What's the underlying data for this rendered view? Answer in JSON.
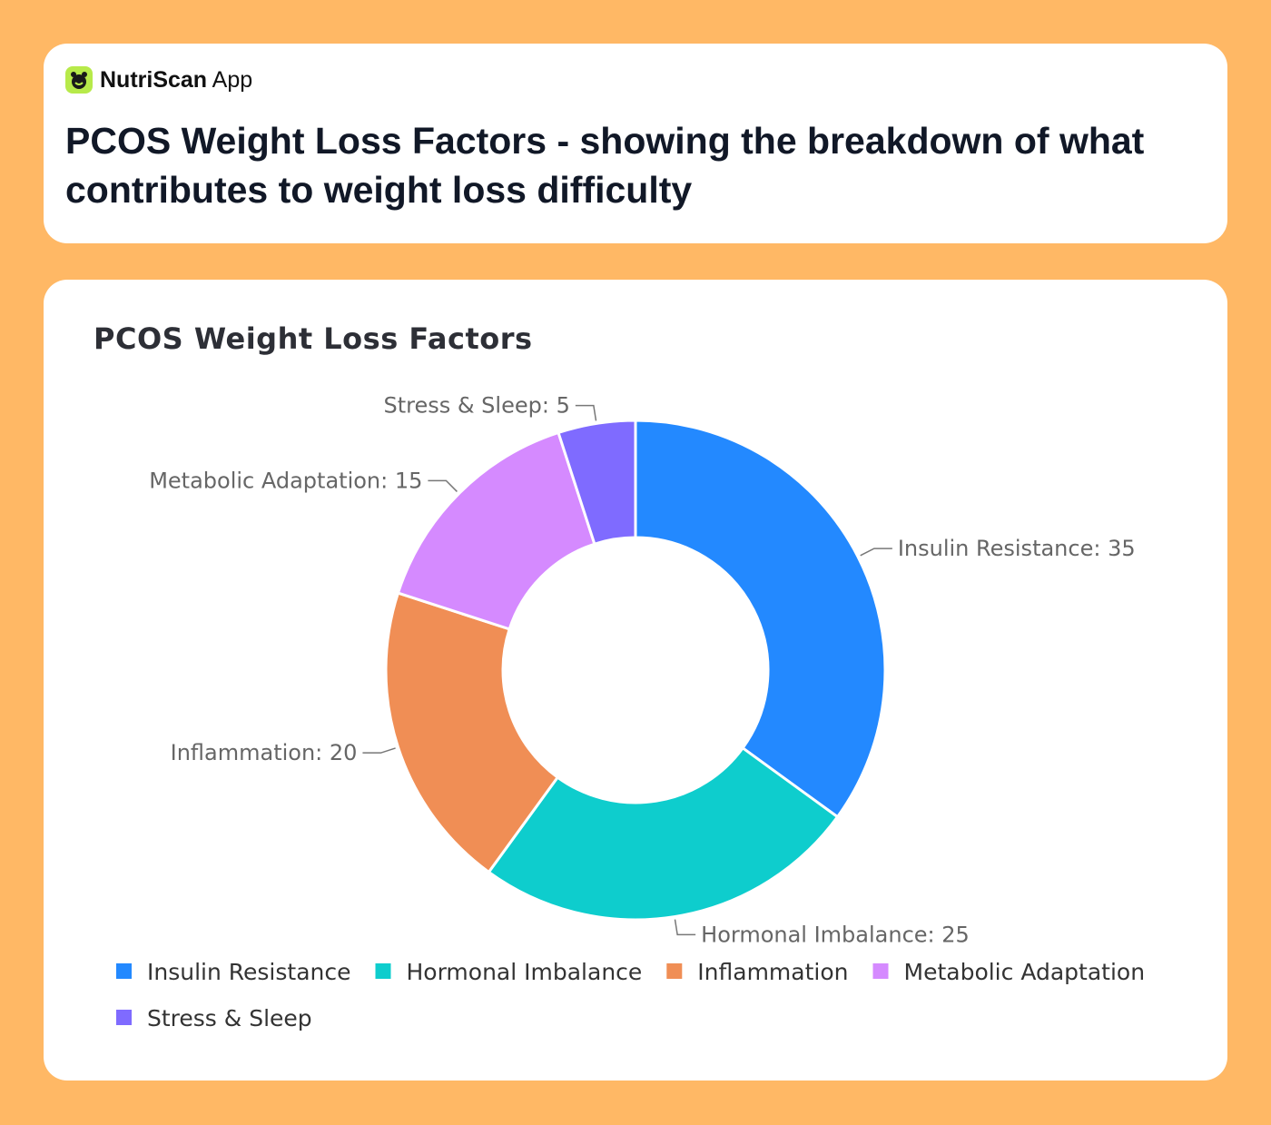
{
  "header": {
    "brand": "NutriScan",
    "brand_suffix": "App",
    "title": "PCOS Weight Loss Factors - showing the breakdown of what contributes to weight loss difficulty"
  },
  "chart_data": {
    "type": "donut",
    "title": "PCOS Weight Loss Factors",
    "categories": [
      "Insulin Resistance",
      "Hormonal Imbalance",
      "Inflammation",
      "Metabolic Adaptation",
      "Stress & Sleep"
    ],
    "values": [
      35,
      25,
      20,
      15,
      5
    ],
    "value_labels": [
      "Insulin Resistance: 35",
      "Hormonal Imbalance: 25",
      "Inflammation: 20",
      "Metabolic Adaptation: 15",
      "Stress & Sleep: 5"
    ],
    "colors": [
      "#2389ff",
      "#0ecdcd",
      "#f08e55",
      "#d58aff",
      "#7f6bff"
    ],
    "legend": "bottom"
  }
}
